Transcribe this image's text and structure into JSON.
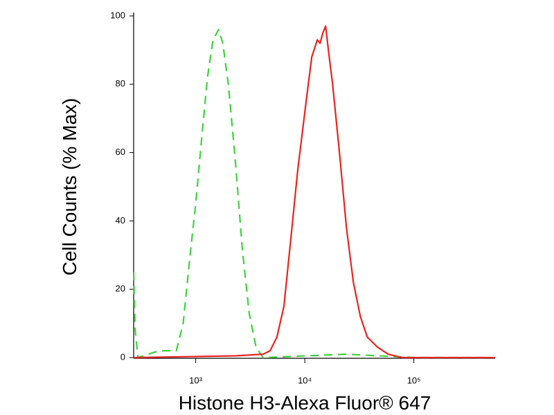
{
  "chart_data": {
    "type": "line",
    "x_label": "Histone H3-Alexa Fluor® 647",
    "y_label": "Cell Counts (% Max)",
    "xscale": "log",
    "xlim": [
      270,
      556000
    ],
    "xticks": [
      {
        "value": 1000,
        "label": "10³"
      },
      {
        "value": 10000,
        "label": "10⁴"
      },
      {
        "value": 100000,
        "label": "10⁵"
      }
    ],
    "ylim": [
      0,
      100
    ],
    "yticks": [
      0,
      20,
      40,
      60,
      80,
      100
    ],
    "series": [
      {
        "color": "#3cd23c",
        "style": "dashed",
        "x": [
          270,
          279,
          296,
          459,
          664,
          768,
          889,
          1000,
          1141,
          1283,
          1442,
          1622,
          1771,
          1991,
          2305,
          2672,
          3093,
          3580,
          4150,
          24100,
          104500,
          453000
        ],
        "values": [
          25,
          8,
          0,
          2,
          2,
          10,
          30,
          45,
          65,
          82,
          93,
          96,
          92,
          80,
          58,
          32,
          13,
          3,
          0,
          1,
          0,
          0
        ]
      },
      {
        "color": "#e8231e",
        "style": "solid",
        "x": [
          270,
          2305,
          4150,
          4810,
          5560,
          6440,
          7460,
          8630,
          10300,
          11590,
          13030,
          13810,
          14650,
          15530,
          16470,
          17990,
          20800,
          24100,
          27900,
          32350,
          37420,
          46650,
          58100,
          77950,
          556000
        ],
        "values": [
          0,
          0.5,
          1,
          2,
          6,
          15,
          35,
          55,
          75,
          88,
          93,
          92,
          95,
          97,
          90,
          80,
          60,
          38,
          22,
          12,
          6,
          3,
          1,
          0,
          0
        ]
      }
    ]
  }
}
